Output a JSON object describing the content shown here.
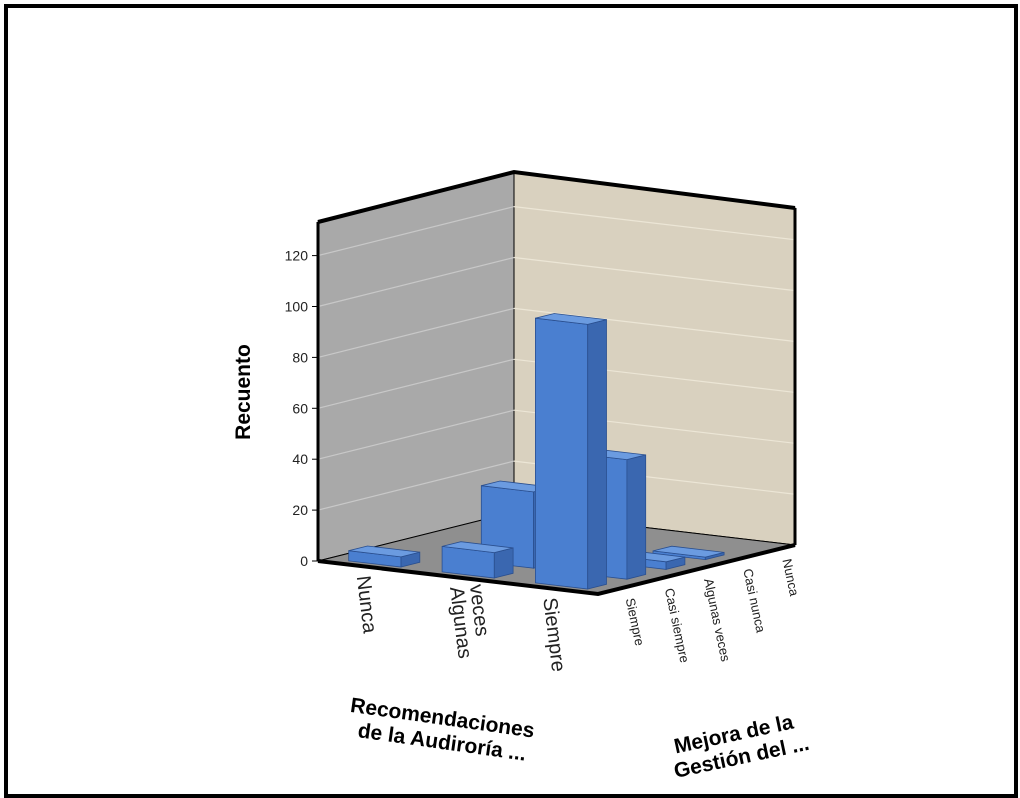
{
  "chart_data": {
    "type": "bar",
    "variant": "3d-bar",
    "ylabel": "Recuento",
    "x_axis_title": "Recomendaciones de la Audiroría ...",
    "z_axis_title": "Mejora de la Gestión del ...",
    "y_ticks": [
      "0",
      "20",
      "40",
      "60",
      "80",
      "100",
      "120"
    ],
    "ylim": [
      0,
      130
    ],
    "x_categories": [
      "Nunca",
      "Algunas veces",
      "Siempre"
    ],
    "z_categories": [
      "Siempre",
      "Casi siempre",
      "Algunas veces",
      "Casi nunca",
      "Nunca"
    ],
    "bars": [
      {
        "x": "Siempre",
        "z": "Siempre",
        "value": 104
      },
      {
        "x": "Siempre",
        "z": "Casi siempre",
        "value": 47
      },
      {
        "x": "Siempre",
        "z": "Algunas veces",
        "value": 3
      },
      {
        "x": "Siempre",
        "z": "Casi nunca",
        "value": 1
      },
      {
        "x": "Algunas veces",
        "z": "Siempre",
        "value": 10
      },
      {
        "x": "Algunas veces",
        "z": "Casi siempre",
        "value": 30
      },
      {
        "x": "Nunca",
        "z": "Siempre",
        "value": 4
      }
    ],
    "colors": {
      "bar_front": "#4a7fd0",
      "bar_side": "#3a67b0",
      "bar_top": "#6b9be0",
      "left_wall": "#a9a9a9",
      "back_wall": "#d9d1bf",
      "floor": "#8f8f8f"
    }
  }
}
